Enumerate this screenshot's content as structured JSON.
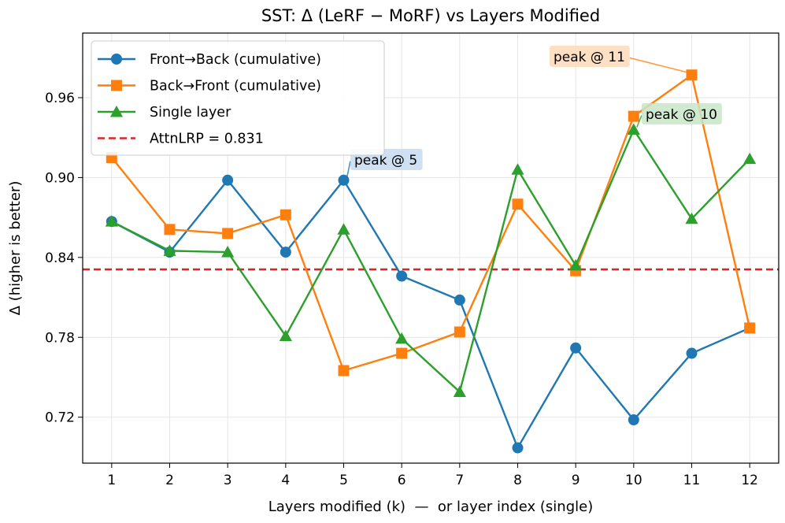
{
  "chart_data": {
    "type": "line",
    "title": "SST: Δ (LeRF − MoRF) vs Layers Modified",
    "xlabel": "Layers modified (k)  —  or layer index (single)",
    "ylabel": "Δ (higher is better)",
    "x": [
      1,
      2,
      3,
      4,
      5,
      6,
      7,
      8,
      9,
      10,
      11,
      12
    ],
    "xlim": [
      0.5,
      12.5
    ],
    "ylim": [
      0.6855,
      1.0085
    ],
    "yticks": [
      0.72,
      0.78,
      0.84,
      0.9,
      0.96
    ],
    "ytick_labels": [
      "0.72",
      "0.78",
      "0.84",
      "0.90",
      "0.96"
    ],
    "xtick_labels": [
      "1",
      "2",
      "3",
      "4",
      "5",
      "6",
      "7",
      "8",
      "9",
      "10",
      "11",
      "12"
    ],
    "grid": true,
    "legend_position": "top-left",
    "series": [
      {
        "name": "Front→Back (cumulative)",
        "color": "#1f77b4",
        "marker": "circle",
        "values": [
          0.867,
          0.844,
          0.898,
          0.844,
          0.898,
          0.826,
          0.808,
          0.697,
          0.772,
          0.718,
          0.768,
          0.787
        ]
      },
      {
        "name": "Back→Front (cumulative)",
        "color": "#ff7f0e",
        "marker": "square",
        "values": [
          0.915,
          0.861,
          0.858,
          0.872,
          0.755,
          0.768,
          0.784,
          0.88,
          0.83,
          0.946,
          0.977,
          0.787
        ]
      },
      {
        "name": "Single layer",
        "color": "#2ca02c",
        "marker": "triangle",
        "values": [
          0.867,
          0.845,
          0.844,
          0.781,
          0.861,
          0.779,
          0.739,
          0.906,
          0.834,
          0.936,
          0.869,
          0.914
        ]
      }
    ],
    "reference_line": {
      "name": "AttnLRP = 0.831",
      "value": 0.831,
      "color": "#d62728"
    },
    "annotations": [
      {
        "text": "peak @ 5",
        "x": 5,
        "y": 0.898,
        "color": "#1f77b4"
      },
      {
        "text": "peak @ 10",
        "x": 10,
        "y": 0.936,
        "color": "#2ca02c"
      },
      {
        "text": "peak @ 11",
        "x": 11,
        "y": 0.977,
        "color": "#ff7f0e"
      }
    ]
  }
}
